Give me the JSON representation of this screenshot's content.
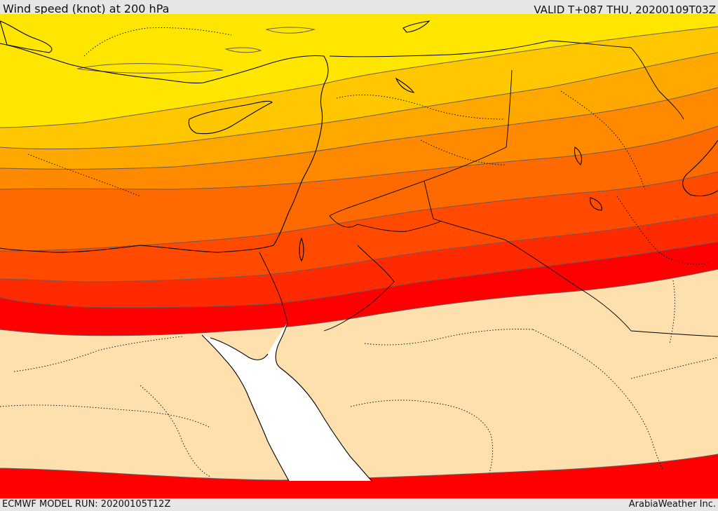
{
  "header": {
    "title": "Wind speed (knot) at 200 hPa",
    "valid": "VALID T+087 THU, 20200109T03Z"
  },
  "footer": {
    "model_run": "ECMWF MODEL RUN: 20200105T12Z",
    "credit": "ArabiaWeather Inc."
  },
  "map": {
    "colors": {
      "calm": "#fde0ad",
      "band1": "#ffe600",
      "band2": "#ffc700",
      "band3": "#ffa800",
      "band4": "#ff8a00",
      "band5": "#ff6a00",
      "band6": "#ff4a00",
      "band7": "#ff2a00",
      "band8": "#ff0000",
      "sea": "#ffffff",
      "coast": "#000000",
      "contour": "#6a5a5a"
    }
  }
}
